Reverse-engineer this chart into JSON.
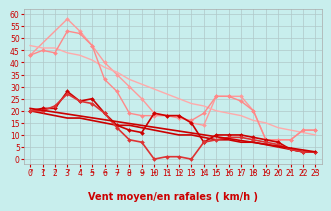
{
  "title": "",
  "xlabel": "Vent moyen/en rafales ( km/h )",
  "background_color": "#c8eeed",
  "grid_color": "#b0c8c8",
  "x_ticks": [
    0,
    1,
    2,
    3,
    4,
    5,
    6,
    7,
    8,
    9,
    10,
    11,
    12,
    13,
    14,
    15,
    16,
    17,
    18,
    19,
    20,
    21,
    22,
    23
  ],
  "y_ticks": [
    0,
    5,
    10,
    15,
    20,
    25,
    30,
    35,
    40,
    45,
    50,
    55,
    60
  ],
  "ylim": [
    -2,
    62
  ],
  "xlim": [
    -0.5,
    23.5
  ],
  "series": [
    {
      "comment": "light pink - top line straight from ~43 to ~12, with bump at x=3 (58)",
      "x": [
        0,
        3,
        4,
        5,
        6,
        7,
        8,
        9,
        10,
        11,
        12,
        13,
        14,
        15,
        16,
        17,
        18,
        19,
        20,
        21,
        22,
        23
      ],
      "y": [
        43,
        58,
        53,
        47,
        40,
        35,
        30,
        25,
        19,
        18,
        18,
        15,
        14,
        26,
        26,
        26,
        20,
        8,
        8,
        8,
        12,
        12
      ],
      "color": "#ff9999",
      "lw": 1.0,
      "marker": "D",
      "ms": 2.0
    },
    {
      "comment": "light pink - second line from ~47 to ~12 nearly straight",
      "x": [
        0,
        1,
        2,
        3,
        4,
        5,
        6,
        7,
        8,
        9,
        10,
        11,
        12,
        13,
        14,
        15,
        16,
        17,
        18,
        19,
        20,
        21,
        22,
        23
      ],
      "y": [
        47,
        46,
        46,
        44,
        43,
        41,
        38,
        36,
        33,
        31,
        29,
        27,
        25,
        23,
        22,
        20,
        19,
        18,
        16,
        15,
        13,
        12,
        11,
        10
      ],
      "color": "#ffaaaa",
      "lw": 1.0,
      "marker": null,
      "ms": 0
    },
    {
      "comment": "light pink with markers - from ~43 at 0, peak ~45 at 1, then down to ~12",
      "x": [
        0,
        1,
        2,
        3,
        4,
        5,
        6,
        7,
        8,
        9,
        10,
        11,
        12,
        13,
        14,
        15,
        16,
        17,
        18,
        19,
        20,
        21,
        22,
        23
      ],
      "y": [
        43,
        45,
        44,
        53,
        52,
        47,
        33,
        28,
        19,
        18,
        18,
        18,
        17,
        16,
        19,
        26,
        26,
        24,
        20,
        8,
        8,
        8,
        12,
        12
      ],
      "color": "#ff8888",
      "lw": 1.0,
      "marker": "D",
      "ms": 2.0
    },
    {
      "comment": "dark red - straight diagonal from ~20 to ~3",
      "x": [
        0,
        1,
        2,
        3,
        4,
        5,
        6,
        7,
        8,
        9,
        10,
        11,
        12,
        13,
        14,
        15,
        16,
        17,
        18,
        19,
        20,
        21,
        22,
        23
      ],
      "y": [
        20,
        19,
        18,
        17,
        17,
        16,
        15,
        14,
        14,
        13,
        12,
        11,
        10,
        10,
        9,
        8,
        8,
        7,
        7,
        6,
        5,
        4,
        3,
        3
      ],
      "color": "#cc0000",
      "lw": 1.2,
      "marker": null,
      "ms": 0
    },
    {
      "comment": "dark red with markers - from ~20, bumps at 3(28), down to 0 at 13, then back up to 10, then down",
      "x": [
        0,
        1,
        2,
        3,
        4,
        5,
        6,
        7,
        8,
        9,
        10,
        11,
        12,
        13,
        14,
        15,
        16,
        17,
        18,
        19,
        20,
        21,
        22,
        23
      ],
      "y": [
        20,
        21,
        21,
        28,
        24,
        25,
        19,
        14,
        12,
        11,
        19,
        18,
        18,
        15,
        7,
        10,
        10,
        10,
        9,
        8,
        7,
        4,
        3,
        3
      ],
      "color": "#cc0000",
      "lw": 1.2,
      "marker": "D",
      "ms": 2.0
    },
    {
      "comment": "dark red with markers - from ~20 slightly, bumps at 3(27), goes to ~0 at 13, jumps to 8 at 15, declines",
      "x": [
        0,
        1,
        2,
        3,
        4,
        5,
        6,
        7,
        8,
        9,
        10,
        11,
        12,
        13,
        14,
        15,
        16,
        17,
        18,
        19,
        20,
        21,
        22,
        23
      ],
      "y": [
        20,
        20,
        22,
        27,
        24,
        23,
        19,
        13,
        8,
        7,
        0,
        1,
        1,
        0,
        7,
        8,
        9,
        9,
        8,
        7,
        6,
        4,
        3,
        3
      ],
      "color": "#dd3333",
      "lw": 1.2,
      "marker": "D",
      "ms": 2.0
    },
    {
      "comment": "dark red straight line from 21 to 3",
      "x": [
        0,
        23
      ],
      "y": [
        21,
        3
      ],
      "color": "#cc0000",
      "lw": 1.2,
      "marker": null,
      "ms": 0
    }
  ],
  "arrows": [
    "↗",
    "↗",
    "↗",
    "↗",
    "↗",
    "→",
    "→",
    "→",
    "→",
    "→",
    "→",
    "↘",
    "↘",
    "↘",
    "↙",
    "↙",
    "↙",
    "↙",
    "↙",
    "↙",
    "↙",
    "↙",
    "↙",
    "↙"
  ],
  "tick_fontsize": 5.5,
  "label_fontsize": 7
}
